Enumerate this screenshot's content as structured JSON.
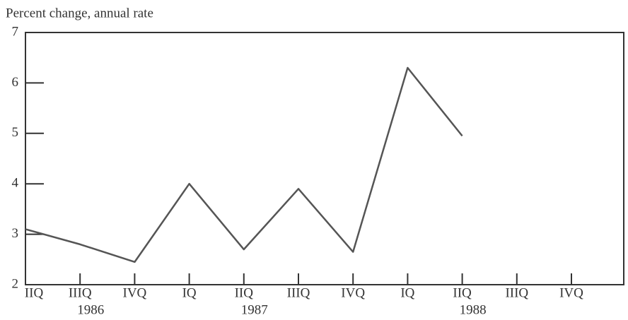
{
  "chart_data": {
    "type": "line",
    "y_axis_label": "Percent change, annual rate",
    "categories": [
      "IIQ",
      "IIIQ",
      "IVQ",
      "IQ",
      "IIQ",
      "IIIQ",
      "IVQ",
      "IQ",
      "IIQ",
      "IIIQ",
      "IVQ"
    ],
    "year_labels": [
      "1986",
      "1987",
      "1988"
    ],
    "series": [
      {
        "name": "Percent change",
        "color": "#555555",
        "values": [
          3.1,
          2.8,
          2.45,
          4.0,
          2.7,
          3.9,
          2.65,
          6.3,
          4.95,
          null,
          null
        ]
      }
    ],
    "ylim": [
      2,
      7
    ],
    "yticks": [
      2,
      3,
      4,
      5,
      6,
      7
    ],
    "grid": false
  }
}
